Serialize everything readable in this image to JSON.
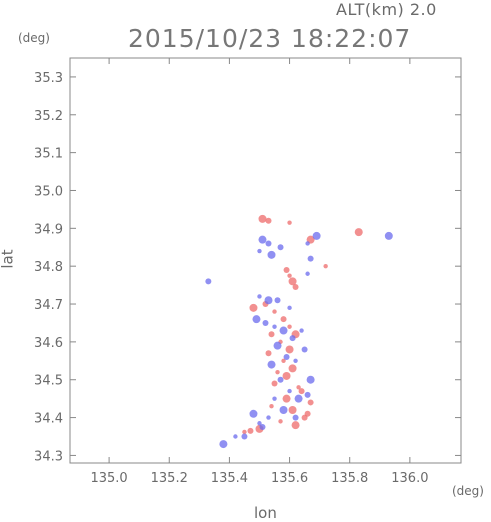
{
  "header": {
    "altitude_label": "ALT(km) 2.0",
    "timestamp": "2015/10/23 18:22:07"
  },
  "axes": {
    "y_unit": "(deg)",
    "x_unit": "(deg)",
    "xlabel": "lon",
    "ylabel": "lat",
    "xlim": [
      134.87,
      136.17
    ],
    "ylim": [
      34.28,
      35.35
    ],
    "x_ticks": [
      "135.0",
      "135.2",
      "135.4",
      "135.6",
      "135.8",
      "136.0"
    ],
    "y_ticks": [
      "34.3",
      "34.4",
      "34.5",
      "34.6",
      "34.7",
      "34.8",
      "34.9",
      "35.0",
      "35.1",
      "35.2",
      "35.3"
    ]
  },
  "colors": {
    "positive": "#ee6b6b",
    "negative": "#6b6bee",
    "axis": "#888888"
  },
  "chart_data": {
    "type": "scatter",
    "x_ticks": [
      "135.0",
      "135.2",
      "135.4",
      "135.6",
      "135.8",
      "136.0"
    ],
    "y_ticks": [
      "34.3",
      "34.4",
      "34.5",
      "34.6",
      "34.7",
      "34.8",
      "34.9",
      "35.0",
      "35.1",
      "35.2",
      "35.3"
    ],
    "xlim": [
      134.87,
      136.17
    ],
    "ylim": [
      34.28,
      35.35
    ],
    "series": [
      {
        "sign": "positive",
        "points": [
          [
            135.51,
            34.925
          ],
          [
            135.53,
            34.92
          ],
          [
            135.6,
            34.915
          ],
          [
            135.67,
            34.87
          ],
          [
            135.59,
            34.79
          ],
          [
            135.6,
            34.775
          ],
          [
            135.61,
            34.76
          ],
          [
            135.62,
            34.745
          ],
          [
            135.72,
            34.8
          ],
          [
            135.83,
            34.89
          ],
          [
            135.52,
            34.7
          ],
          [
            135.55,
            34.68
          ],
          [
            135.48,
            34.69
          ],
          [
            135.58,
            34.66
          ],
          [
            135.6,
            34.64
          ],
          [
            135.62,
            34.62
          ],
          [
            135.54,
            34.62
          ],
          [
            135.57,
            34.6
          ],
          [
            135.6,
            34.58
          ],
          [
            135.53,
            34.57
          ],
          [
            135.58,
            34.55
          ],
          [
            135.61,
            34.53
          ],
          [
            135.55,
            34.49
          ],
          [
            135.63,
            34.48
          ],
          [
            135.59,
            34.45
          ],
          [
            135.67,
            34.44
          ],
          [
            135.54,
            34.43
          ],
          [
            135.61,
            34.42
          ],
          [
            135.65,
            34.4
          ],
          [
            135.57,
            34.39
          ],
          [
            135.62,
            34.38
          ],
          [
            135.47,
            34.365
          ],
          [
            135.45,
            34.362
          ],
          [
            135.5,
            34.37
          ],
          [
            135.64,
            34.47
          ],
          [
            135.56,
            34.52
          ],
          [
            135.59,
            34.51
          ],
          [
            135.66,
            34.41
          ]
        ]
      },
      {
        "sign": "negative",
        "points": [
          [
            135.51,
            34.87
          ],
          [
            135.53,
            34.86
          ],
          [
            135.5,
            34.84
          ],
          [
            135.54,
            34.83
          ],
          [
            135.57,
            34.85
          ],
          [
            135.66,
            34.86
          ],
          [
            135.69,
            34.88
          ],
          [
            135.67,
            34.82
          ],
          [
            135.66,
            34.78
          ],
          [
            135.93,
            34.88
          ],
          [
            135.33,
            34.76
          ],
          [
            135.5,
            34.72
          ],
          [
            135.53,
            34.71
          ],
          [
            135.56,
            34.71
          ],
          [
            135.6,
            34.69
          ],
          [
            135.49,
            34.66
          ],
          [
            135.52,
            34.65
          ],
          [
            135.55,
            34.64
          ],
          [
            135.58,
            34.63
          ],
          [
            135.61,
            34.61
          ],
          [
            135.64,
            34.63
          ],
          [
            135.56,
            34.59
          ],
          [
            135.59,
            34.56
          ],
          [
            135.62,
            34.55
          ],
          [
            135.54,
            34.54
          ],
          [
            135.57,
            34.5
          ],
          [
            135.6,
            34.47
          ],
          [
            135.63,
            34.45
          ],
          [
            135.66,
            34.46
          ],
          [
            135.55,
            34.45
          ],
          [
            135.58,
            34.42
          ],
          [
            135.62,
            34.4
          ],
          [
            135.53,
            34.4
          ],
          [
            135.48,
            34.41
          ],
          [
            135.51,
            34.375
          ],
          [
            135.42,
            34.35
          ],
          [
            135.38,
            34.33
          ],
          [
            135.45,
            34.35
          ],
          [
            135.5,
            34.385
          ],
          [
            135.67,
            34.5
          ],
          [
            135.65,
            34.58
          ]
        ]
      }
    ]
  }
}
